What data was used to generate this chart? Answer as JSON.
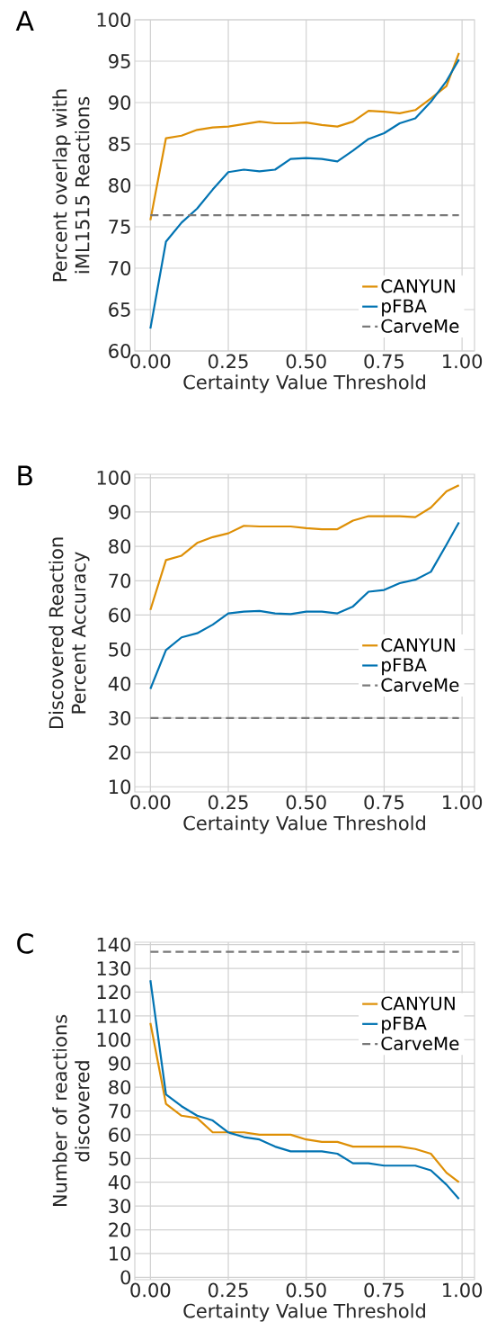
{
  "chart_data": [
    {
      "type": "line",
      "title": "A",
      "xlabel": "Certainty Value Threshold",
      "ylabel": "Percent overlap with iML1515 Reactions",
      "xlim": [
        -0.05,
        1.04
      ],
      "ylim": [
        60,
        100
      ],
      "xticks": [
        {
          "value": 0,
          "label": "0.00"
        },
        {
          "value": 0.25,
          "label": "0.25"
        },
        {
          "value": 0.5,
          "label": "0.50"
        },
        {
          "value": 0.75,
          "label": "0.75"
        },
        {
          "value": 1,
          "label": "1.00"
        }
      ],
      "yticks": [
        60,
        65,
        70,
        75,
        80,
        85,
        90,
        95,
        100
      ],
      "grid": true,
      "legend": "bottom right",
      "x": [
        0,
        0.05,
        0.1,
        0.15,
        0.2,
        0.25,
        0.3,
        0.35,
        0.4,
        0.45,
        0.5,
        0.55,
        0.6,
        0.65,
        0.7,
        0.75,
        0.8,
        0.85,
        0.9,
        0.95,
        0.99
      ],
      "series": [
        {
          "name": "CANYUN",
          "color": "#de8f05",
          "values": [
            75.8,
            85.7,
            86,
            86.7,
            87,
            87.1,
            87.4,
            87.7,
            87.5,
            87.5,
            87.6,
            87.3,
            87.1,
            87.7,
            89,
            88.9,
            88.7,
            89.1,
            90.5,
            92,
            96
          ]
        },
        {
          "name": "pFBA",
          "color": "#0173b2",
          "values": [
            62.7,
            73.2,
            75.5,
            77.2,
            79.5,
            81.6,
            81.9,
            81.7,
            81.9,
            83.2,
            83.3,
            83.2,
            82.9,
            84.2,
            85.6,
            86.3,
            87.5,
            88.1,
            90.1,
            92.6,
            95.2
          ]
        },
        {
          "name": "CarveMe",
          "color": "#7a7a7a",
          "line_style": "dashed",
          "values": [
            76.4,
            76.4,
            76.4,
            76.4,
            76.4,
            76.4,
            76.4,
            76.4,
            76.4,
            76.4,
            76.4,
            76.4,
            76.4,
            76.4,
            76.4,
            76.4,
            76.4,
            76.4,
            76.4,
            76.4,
            76.4
          ]
        }
      ]
    },
    {
      "type": "line",
      "title": "B",
      "xlabel": "Certainty Value Threshold",
      "ylabel": "Discovered Reaction Percent Accuracy",
      "xlim": [
        -0.05,
        1.04
      ],
      "ylim": [
        8.5,
        101
      ],
      "xticks": [
        {
          "value": 0,
          "label": "0.00"
        },
        {
          "value": 0.25,
          "label": "0.25"
        },
        {
          "value": 0.5,
          "label": "0.50"
        },
        {
          "value": 0.75,
          "label": "0.75"
        },
        {
          "value": 1,
          "label": "1.00"
        }
      ],
      "yticks": [
        10,
        20,
        30,
        40,
        50,
        60,
        70,
        80,
        90,
        100
      ],
      "grid": true,
      "legend": "right",
      "x": [
        0,
        0.05,
        0.1,
        0.15,
        0.2,
        0.25,
        0.3,
        0.35,
        0.4,
        0.45,
        0.5,
        0.55,
        0.6,
        0.65,
        0.7,
        0.75,
        0.8,
        0.85,
        0.9,
        0.95,
        0.99
      ],
      "series": [
        {
          "name": "CANYUN",
          "color": "#de8f05",
          "values": [
            61.5,
            76,
            77.3,
            81,
            82.7,
            83.8,
            86,
            85.8,
            85.8,
            85.8,
            85.3,
            85,
            85,
            87.5,
            88.8,
            88.8,
            88.8,
            88.5,
            91.3,
            96,
            97.8
          ]
        },
        {
          "name": "pFBA",
          "color": "#0173b2",
          "values": [
            38.5,
            49.8,
            53.5,
            54.7,
            57.2,
            60.5,
            61,
            61.2,
            60.5,
            60.3,
            61,
            61,
            60.5,
            62.5,
            66.8,
            67.3,
            69.3,
            70.3,
            72.6,
            80.5,
            87
          ]
        },
        {
          "name": "CarveMe",
          "color": "#7a7a7a",
          "line_style": "dashed",
          "values": [
            30,
            30,
            30,
            30,
            30,
            30,
            30,
            30,
            30,
            30,
            30,
            30,
            30,
            30,
            30,
            30,
            30,
            30,
            30,
            30,
            30
          ]
        }
      ]
    },
    {
      "type": "line",
      "title": "C",
      "xlabel": "Certainty Value Threshold",
      "ylabel": "Number of reactions discovered",
      "xlim": [
        -0.05,
        1.04
      ],
      "ylim": [
        -1,
        141
      ],
      "xticks": [
        {
          "value": 0,
          "label": "0.00"
        },
        {
          "value": 0.25,
          "label": "0.25"
        },
        {
          "value": 0.5,
          "label": "0.50"
        },
        {
          "value": 0.75,
          "label": "0.75"
        },
        {
          "value": 1,
          "label": "1.00"
        }
      ],
      "yticks": [
        0,
        10,
        20,
        30,
        40,
        50,
        60,
        70,
        80,
        90,
        100,
        110,
        120,
        130,
        140
      ],
      "grid": true,
      "legend": "top right",
      "x": [
        0,
        0.05,
        0.1,
        0.15,
        0.2,
        0.25,
        0.3,
        0.35,
        0.4,
        0.45,
        0.5,
        0.55,
        0.6,
        0.65,
        0.7,
        0.75,
        0.8,
        0.85,
        0.9,
        0.95,
        0.99
      ],
      "series": [
        {
          "name": "CANYUN",
          "color": "#de8f05",
          "values": [
            107,
            73,
            68,
            67,
            61,
            61,
            61,
            60,
            60,
            60,
            58,
            57,
            57,
            55,
            55,
            55,
            55,
            54,
            52,
            44,
            40
          ]
        },
        {
          "name": "pFBA",
          "color": "#0173b2",
          "values": [
            125,
            77,
            72,
            68,
            66,
            61,
            59,
            58,
            55,
            53,
            53,
            53,
            52,
            48,
            48,
            47,
            47,
            47,
            45,
            39,
            33
          ]
        },
        {
          "name": "CarveMe",
          "color": "#7a7a7a",
          "line_style": "dashed",
          "values": [
            137,
            137,
            137,
            137,
            137,
            137,
            137,
            137,
            137,
            137,
            137,
            137,
            137,
            137,
            137,
            137,
            137,
            137,
            137,
            137,
            137
          ]
        }
      ]
    }
  ]
}
